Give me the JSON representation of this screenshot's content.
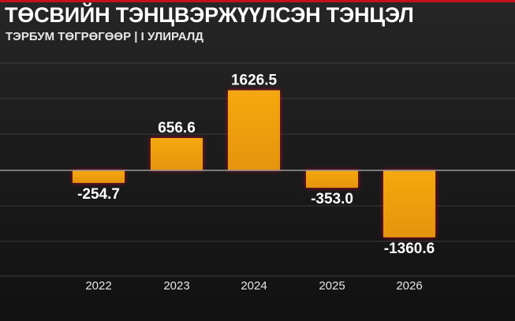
{
  "header": {
    "title": "ТӨСВИЙН ТЭНЦВЭРЖҮҮЛСЭН ТЭНЦЭЛ",
    "subtitle": "ТЭРБУМ ТӨГРӨГӨӨР | I УЛИРАЛД"
  },
  "colors": {
    "bar": "#f0a010",
    "bar_glow": "#c8102e",
    "grid": "#3a3a3a",
    "zero_line": "#9a9a9a",
    "accent": "#c4101a"
  },
  "chart_data": {
    "type": "bar",
    "title": "ТӨСВИЙН ТЭНЦВЭРЖҮҮЛСЭН ТЭНЦЭЛ",
    "subtitle": "ТЭРБУМ ТӨГРӨГӨӨР | I УЛИРАЛД",
    "categories": [
      "2022",
      "2023",
      "2024",
      "2025",
      "2026"
    ],
    "values": [
      -254.7,
      656.6,
      1626.5,
      -353.0,
      -1360.6
    ],
    "labels": [
      "-254.7",
      "656.6",
      "1626.5",
      "-353.0",
      "-1360.6"
    ],
    "xlabel": "",
    "ylabel": "",
    "ylim": [
      -2000,
      2000
    ],
    "grid": true,
    "legend": "none"
  }
}
